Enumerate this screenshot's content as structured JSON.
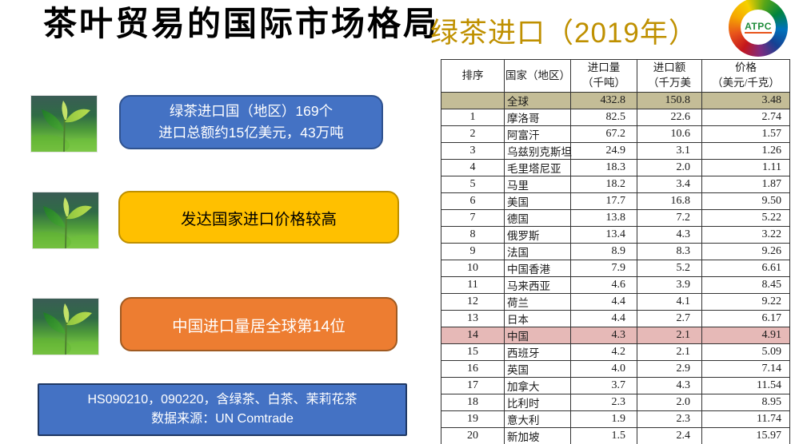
{
  "header": {
    "title": "茶叶贸易的国际市场格局",
    "subtitle": "绿茶进口（2019年）",
    "title_color": "#000000",
    "subtitle_color": "#BF9000",
    "logo_text": "ATPC"
  },
  "callouts": [
    {
      "lines": [
        "绿茶进口国（地区）169个",
        "进口总额约15亿美元，43万吨"
      ],
      "bg": "#4472C4",
      "border": "#2F528F",
      "text_color": "#FFFFFF"
    },
    {
      "lines": [
        "发达国家进口价格较高"
      ],
      "bg": "#FFC000",
      "border": "#BF9000",
      "text_color": "#000000"
    },
    {
      "lines": [
        "中国进口量居全球第14位"
      ],
      "bg": "#ED7D31",
      "border": "#A05A21",
      "text_color": "#FFFFFF"
    }
  ],
  "footnote": {
    "lines": [
      "HS090210，090220，含绿茶、白茶、茉莉花茶",
      "数据来源：UN Comtrade"
    ],
    "bg": "#4472C4",
    "border": "#1F3864",
    "text_color": "#FFFFFF"
  },
  "table": {
    "headers": [
      {
        "l1": "排序",
        "l2": ""
      },
      {
        "l1": "国家（地区）",
        "l2": ""
      },
      {
        "l1": "进口量",
        "l2": "（千吨）"
      },
      {
        "l1": "进口额",
        "l2": "（千万美"
      },
      {
        "l1": "价格",
        "l2": "（美元/千克）"
      }
    ],
    "highlight_colors": {
      "global": "#C4BD97",
      "china": "#E6B9B7"
    },
    "rows": [
      {
        "rank": "",
        "country": "全球",
        "volume": "432.8",
        "amount": "150.8",
        "price": "3.48",
        "highlight": "global"
      },
      {
        "rank": "1",
        "country": "摩洛哥",
        "volume": "82.5",
        "amount": "22.6",
        "price": "2.74"
      },
      {
        "rank": "2",
        "country": "阿富汗",
        "volume": "67.2",
        "amount": "10.6",
        "price": "1.57"
      },
      {
        "rank": "3",
        "country": "乌兹别克斯坦",
        "volume": "24.9",
        "amount": "3.1",
        "price": "1.26"
      },
      {
        "rank": "4",
        "country": "毛里塔尼亚",
        "volume": "18.3",
        "amount": "2.0",
        "price": "1.11"
      },
      {
        "rank": "5",
        "country": "马里",
        "volume": "18.2",
        "amount": "3.4",
        "price": "1.87"
      },
      {
        "rank": "6",
        "country": "美国",
        "volume": "17.7",
        "amount": "16.8",
        "price": "9.50"
      },
      {
        "rank": "7",
        "country": "德国",
        "volume": "13.8",
        "amount": "7.2",
        "price": "5.22"
      },
      {
        "rank": "8",
        "country": "俄罗斯",
        "volume": "13.4",
        "amount": "4.3",
        "price": "3.22"
      },
      {
        "rank": "9",
        "country": "法国",
        "volume": "8.9",
        "amount": "8.3",
        "price": "9.26"
      },
      {
        "rank": "10",
        "country": "中国香港",
        "volume": "7.9",
        "amount": "5.2",
        "price": "6.61"
      },
      {
        "rank": "11",
        "country": "马来西亚",
        "volume": "4.6",
        "amount": "3.9",
        "price": "8.45"
      },
      {
        "rank": "12",
        "country": "荷兰",
        "volume": "4.4",
        "amount": "4.1",
        "price": "9.22"
      },
      {
        "rank": "13",
        "country": "日本",
        "volume": "4.4",
        "amount": "2.7",
        "price": "6.17"
      },
      {
        "rank": "14",
        "country": "中国",
        "volume": "4.3",
        "amount": "2.1",
        "price": "4.91",
        "highlight": "china"
      },
      {
        "rank": "15",
        "country": "西班牙",
        "volume": "4.2",
        "amount": "2.1",
        "price": "5.09"
      },
      {
        "rank": "16",
        "country": "英国",
        "volume": "4.0",
        "amount": "2.9",
        "price": "7.14"
      },
      {
        "rank": "17",
        "country": "加拿大",
        "volume": "3.7",
        "amount": "4.3",
        "price": "11.54"
      },
      {
        "rank": "18",
        "country": "比利时",
        "volume": "2.3",
        "amount": "2.0",
        "price": "8.95"
      },
      {
        "rank": "19",
        "country": "意大利",
        "volume": "1.9",
        "amount": "2.3",
        "price": "11.74"
      },
      {
        "rank": "20",
        "country": "新加坡",
        "volume": "1.5",
        "amount": "2.4",
        "price": "15.97"
      }
    ]
  }
}
